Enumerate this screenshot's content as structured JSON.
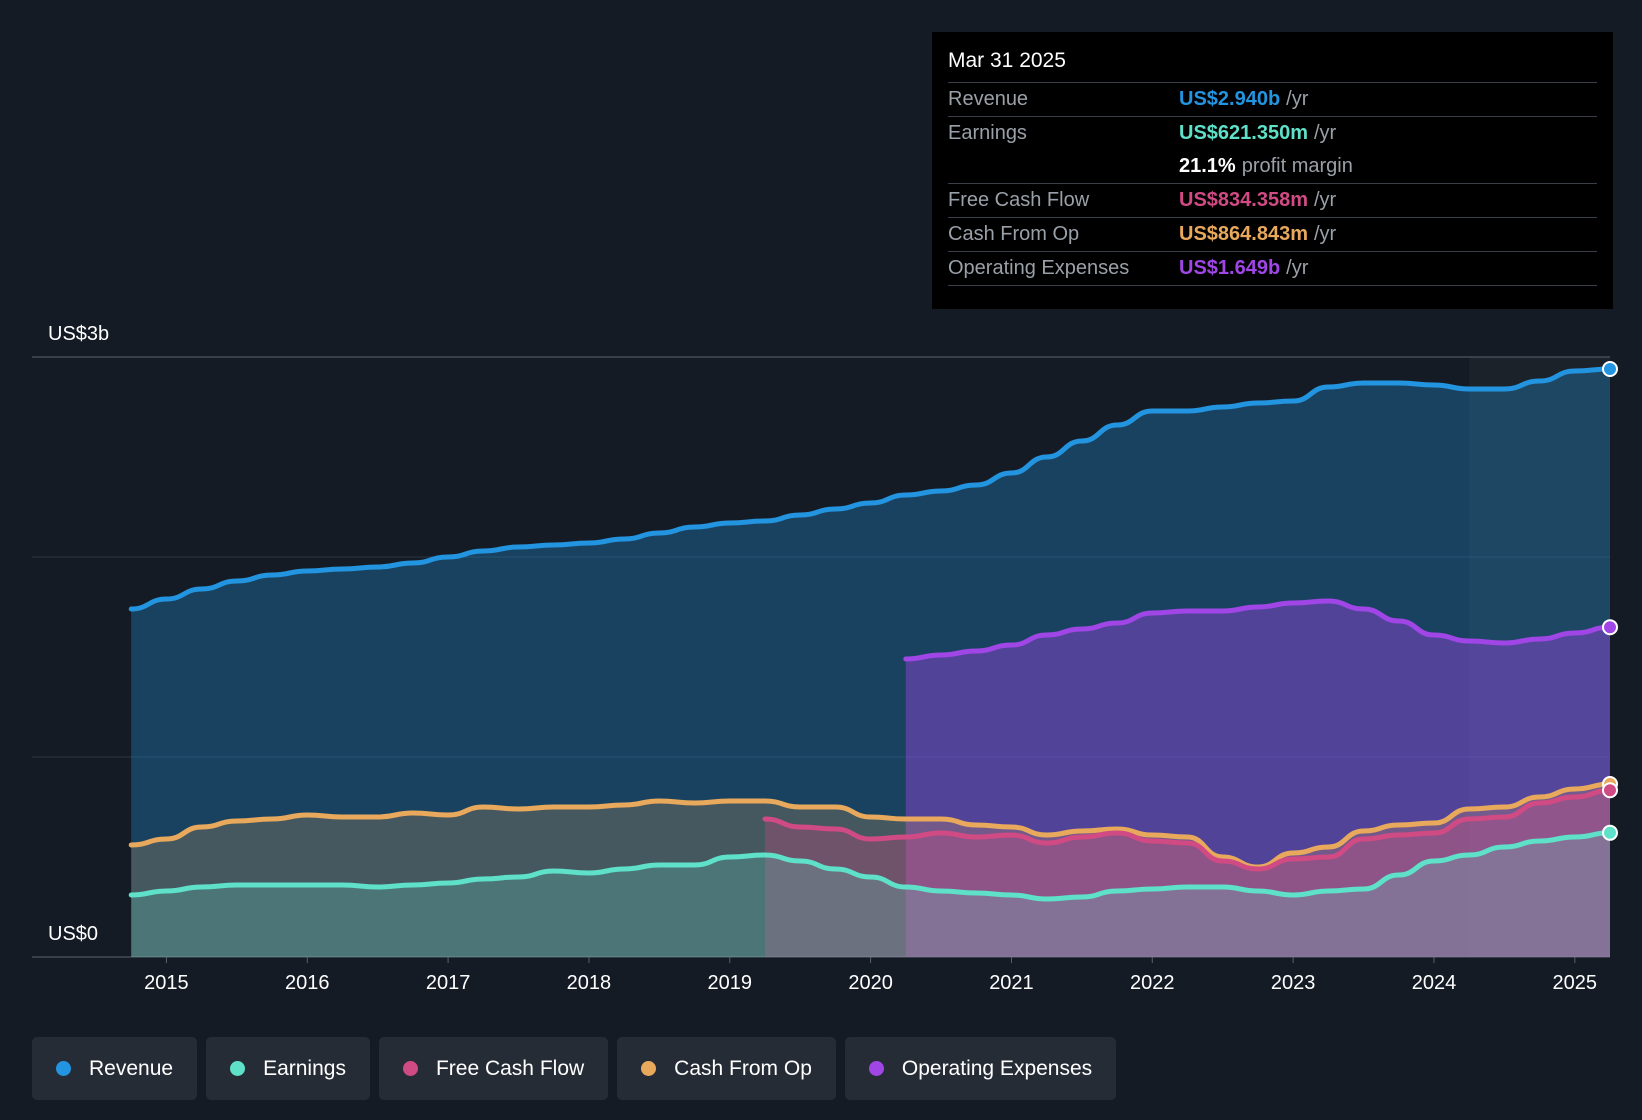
{
  "chart_data": {
    "type": "area",
    "y_axis": {
      "top_label": "US$3b",
      "bottom_label": "US$0",
      "ylim": [
        0,
        3.0
      ],
      "gridlines": [
        0,
        1,
        2,
        3
      ],
      "unit": "billions USD"
    },
    "x_axis": {
      "ticks": [
        "2015",
        "2016",
        "2017",
        "2018",
        "2019",
        "2020",
        "2021",
        "2022",
        "2023",
        "2024",
        "2025"
      ],
      "xlim": [
        2014.5,
        2025.25
      ]
    },
    "past_data_boundary": 2024.25,
    "series": [
      {
        "key": "revenue",
        "name": "Revenue",
        "color": "#2394df",
        "points": [
          [
            2014.75,
            1.74
          ],
          [
            2015,
            1.79
          ],
          [
            2015.25,
            1.84
          ],
          [
            2015.5,
            1.88
          ],
          [
            2015.75,
            1.91
          ],
          [
            2016,
            1.93
          ],
          [
            2016.25,
            1.94
          ],
          [
            2016.5,
            1.95
          ],
          [
            2016.75,
            1.97
          ],
          [
            2017,
            2.0
          ],
          [
            2017.25,
            2.03
          ],
          [
            2017.5,
            2.05
          ],
          [
            2017.75,
            2.06
          ],
          [
            2018,
            2.07
          ],
          [
            2018.25,
            2.09
          ],
          [
            2018.5,
            2.12
          ],
          [
            2018.75,
            2.15
          ],
          [
            2019,
            2.17
          ],
          [
            2019.25,
            2.18
          ],
          [
            2019.5,
            2.21
          ],
          [
            2019.75,
            2.24
          ],
          [
            2020,
            2.27
          ],
          [
            2020.25,
            2.31
          ],
          [
            2020.5,
            2.33
          ],
          [
            2020.75,
            2.36
          ],
          [
            2021,
            2.42
          ],
          [
            2021.25,
            2.5
          ],
          [
            2021.5,
            2.58
          ],
          [
            2021.75,
            2.66
          ],
          [
            2022,
            2.73
          ],
          [
            2022.25,
            2.73
          ],
          [
            2022.5,
            2.75
          ],
          [
            2022.75,
            2.77
          ],
          [
            2023,
            2.78
          ],
          [
            2023.25,
            2.85
          ],
          [
            2023.5,
            2.87
          ],
          [
            2023.75,
            2.87
          ],
          [
            2024,
            2.86
          ],
          [
            2024.25,
            2.84
          ],
          [
            2024.5,
            2.84
          ],
          [
            2024.75,
            2.88
          ],
          [
            2025,
            2.93
          ],
          [
            2025.25,
            2.94
          ]
        ]
      },
      {
        "key": "opex",
        "name": "Operating Expenses",
        "color": "#a046e6",
        "points": [
          [
            2020.25,
            1.49
          ],
          [
            2020.5,
            1.51
          ],
          [
            2020.75,
            1.53
          ],
          [
            2021,
            1.56
          ],
          [
            2021.25,
            1.61
          ],
          [
            2021.5,
            1.64
          ],
          [
            2021.75,
            1.67
          ],
          [
            2022,
            1.72
          ],
          [
            2022.25,
            1.73
          ],
          [
            2022.5,
            1.73
          ],
          [
            2022.75,
            1.75
          ],
          [
            2023,
            1.77
          ],
          [
            2023.25,
            1.78
          ],
          [
            2023.5,
            1.74
          ],
          [
            2023.75,
            1.68
          ],
          [
            2024,
            1.61
          ],
          [
            2024.25,
            1.58
          ],
          [
            2024.5,
            1.57
          ],
          [
            2024.75,
            1.59
          ],
          [
            2025,
            1.62
          ],
          [
            2025.25,
            1.649
          ]
        ]
      },
      {
        "key": "cfo",
        "name": "Cash From Op",
        "color": "#e9a95c",
        "points": [
          [
            2014.75,
            0.56
          ],
          [
            2015,
            0.59
          ],
          [
            2015.25,
            0.65
          ],
          [
            2015.5,
            0.68
          ],
          [
            2015.75,
            0.69
          ],
          [
            2016,
            0.71
          ],
          [
            2016.25,
            0.7
          ],
          [
            2016.5,
            0.7
          ],
          [
            2016.75,
            0.72
          ],
          [
            2017,
            0.71
          ],
          [
            2017.25,
            0.75
          ],
          [
            2017.5,
            0.74
          ],
          [
            2017.75,
            0.75
          ],
          [
            2018,
            0.75
          ],
          [
            2018.25,
            0.76
          ],
          [
            2018.5,
            0.78
          ],
          [
            2018.75,
            0.77
          ],
          [
            2019,
            0.78
          ],
          [
            2019.25,
            0.78
          ],
          [
            2019.5,
            0.75
          ],
          [
            2019.75,
            0.75
          ],
          [
            2020,
            0.7
          ],
          [
            2020.25,
            0.69
          ],
          [
            2020.5,
            0.69
          ],
          [
            2020.75,
            0.66
          ],
          [
            2021,
            0.65
          ],
          [
            2021.25,
            0.61
          ],
          [
            2021.5,
            0.63
          ],
          [
            2021.75,
            0.64
          ],
          [
            2022,
            0.61
          ],
          [
            2022.25,
            0.6
          ],
          [
            2022.5,
            0.5
          ],
          [
            2022.75,
            0.45
          ],
          [
            2023,
            0.52
          ],
          [
            2023.25,
            0.55
          ],
          [
            2023.5,
            0.63
          ],
          [
            2023.75,
            0.66
          ],
          [
            2024,
            0.67
          ],
          [
            2024.25,
            0.74
          ],
          [
            2024.5,
            0.75
          ],
          [
            2024.75,
            0.8
          ],
          [
            2025,
            0.84
          ],
          [
            2025.25,
            0.865
          ]
        ]
      },
      {
        "key": "fcf",
        "name": "Free Cash Flow",
        "color": "#d04a84",
        "points": [
          [
            2019.25,
            0.69
          ],
          [
            2019.5,
            0.65
          ],
          [
            2019.75,
            0.64
          ],
          [
            2020,
            0.59
          ],
          [
            2020.25,
            0.6
          ],
          [
            2020.5,
            0.62
          ],
          [
            2020.75,
            0.6
          ],
          [
            2021,
            0.61
          ],
          [
            2021.25,
            0.57
          ],
          [
            2021.5,
            0.6
          ],
          [
            2021.75,
            0.62
          ],
          [
            2022,
            0.58
          ],
          [
            2022.25,
            0.57
          ],
          [
            2022.5,
            0.48
          ],
          [
            2022.75,
            0.44
          ],
          [
            2023,
            0.49
          ],
          [
            2023.25,
            0.5
          ],
          [
            2023.5,
            0.59
          ],
          [
            2023.75,
            0.61
          ],
          [
            2024,
            0.62
          ],
          [
            2024.25,
            0.69
          ],
          [
            2024.5,
            0.7
          ],
          [
            2024.75,
            0.77
          ],
          [
            2025,
            0.8
          ],
          [
            2025.25,
            0.834
          ]
        ]
      },
      {
        "key": "earnings",
        "name": "Earnings",
        "color": "#5fe0c8",
        "points": [
          [
            2014.75,
            0.31
          ],
          [
            2015,
            0.33
          ],
          [
            2015.25,
            0.35
          ],
          [
            2015.5,
            0.36
          ],
          [
            2015.75,
            0.36
          ],
          [
            2016,
            0.36
          ],
          [
            2016.25,
            0.36
          ],
          [
            2016.5,
            0.35
          ],
          [
            2016.75,
            0.36
          ],
          [
            2017,
            0.37
          ],
          [
            2017.25,
            0.39
          ],
          [
            2017.5,
            0.4
          ],
          [
            2017.75,
            0.43
          ],
          [
            2018,
            0.42
          ],
          [
            2018.25,
            0.44
          ],
          [
            2018.5,
            0.46
          ],
          [
            2018.75,
            0.46
          ],
          [
            2019,
            0.5
          ],
          [
            2019.25,
            0.51
          ],
          [
            2019.5,
            0.48
          ],
          [
            2019.75,
            0.44
          ],
          [
            2020,
            0.4
          ],
          [
            2020.25,
            0.35
          ],
          [
            2020.5,
            0.33
          ],
          [
            2020.75,
            0.32
          ],
          [
            2021,
            0.31
          ],
          [
            2021.25,
            0.29
          ],
          [
            2021.5,
            0.3
          ],
          [
            2021.75,
            0.33
          ],
          [
            2022,
            0.34
          ],
          [
            2022.25,
            0.35
          ],
          [
            2022.5,
            0.35
          ],
          [
            2022.75,
            0.33
          ],
          [
            2023,
            0.31
          ],
          [
            2023.25,
            0.33
          ],
          [
            2023.5,
            0.34
          ],
          [
            2023.75,
            0.41
          ],
          [
            2024,
            0.48
          ],
          [
            2024.25,
            0.51
          ],
          [
            2024.5,
            0.55
          ],
          [
            2024.75,
            0.58
          ],
          [
            2025,
            0.6
          ],
          [
            2025.25,
            0.621
          ]
        ]
      }
    ]
  },
  "tooltip": {
    "date": "Mar 31 2025",
    "unit": "/yr",
    "revenue": {
      "label": "Revenue",
      "value": "US$2.940b",
      "color": "#2394df"
    },
    "earnings": {
      "label": "Earnings",
      "value": "US$621.350m",
      "color": "#5fe0c8"
    },
    "margin": {
      "value": "21.1%",
      "label": "profit margin"
    },
    "fcf": {
      "label": "Free Cash Flow",
      "value": "US$834.358m",
      "color": "#d04a84"
    },
    "cfo": {
      "label": "Cash From Op",
      "value": "US$864.843m",
      "color": "#e9a95c"
    },
    "opex": {
      "label": "Operating Expenses",
      "value": "US$1.649b",
      "color": "#a046e6"
    }
  },
  "legend": [
    {
      "label": "Revenue",
      "color": "#2394df"
    },
    {
      "label": "Earnings",
      "color": "#5fe0c8"
    },
    {
      "label": "Free Cash Flow",
      "color": "#d04a84"
    },
    {
      "label": "Cash From Op",
      "color": "#e9a95c"
    },
    {
      "label": "Operating Expenses",
      "color": "#a046e6"
    }
  ]
}
